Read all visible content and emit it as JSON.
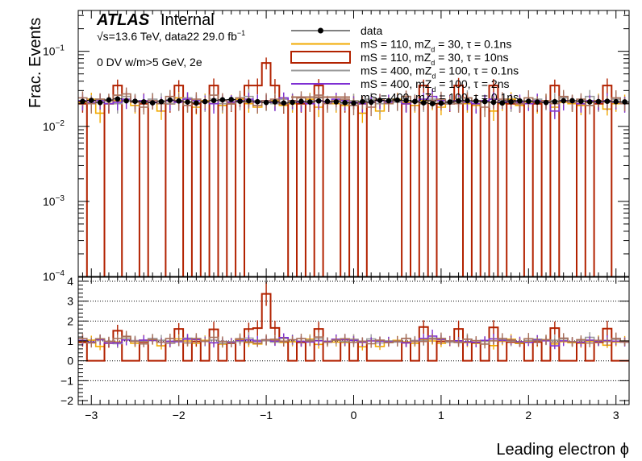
{
  "chart_data": {
    "type": "histogram",
    "x_edges_start": -3.15,
    "x_bin_width": 0.1,
    "n_bins": 63,
    "xlim": [
      -3.15,
      3.15
    ],
    "xlabel": "Leading electron ϕ",
    "x_ticks": [
      -3,
      -2,
      -1,
      0,
      1,
      2,
      3
    ],
    "upper": {
      "ylabel": "Frac. Events",
      "yscale": "log",
      "ylim": [
        0.0001,
        0.35
      ],
      "y_ticks": [
        {
          "value": 0.1,
          "base": "10",
          "exp": "−1"
        },
        {
          "value": 0.01,
          "base": "10",
          "exp": "−2"
        },
        {
          "value": 0.001,
          "base": "10",
          "exp": "−3"
        },
        {
          "value": 0.0001,
          "base": "10",
          "exp": "−4"
        }
      ]
    },
    "ratio": {
      "ylim": [
        -2.2,
        4.2
      ],
      "y_ticks": [
        -2,
        -1,
        0,
        1,
        2,
        3,
        4
      ],
      "grid_lines": [
        -1,
        0,
        1,
        2,
        3,
        4
      ]
    },
    "annotations": {
      "experiment": "ATLAS",
      "status": "Internal",
      "energy_prefix": "√s=13.6 TeV, data22 29.0 fb",
      "energy_sup": "−1",
      "selection": "0 DV w/m>5 GeV, 2e"
    },
    "legend": {
      "placement": "top-right",
      "entries": [
        {
          "label": "data",
          "color": "#000000",
          "style": "marker"
        },
        {
          "label": "mS = 110, mZ_d = 30, τ = 0.1ns",
          "color": "#f2a900",
          "style": "line"
        },
        {
          "label": "mS = 110, mZ_d = 30, τ = 10ns",
          "color": "#b22200",
          "style": "box"
        },
        {
          "label": "mS = 400, mZ_d = 100, τ = 0.1ns",
          "color": "#9a9a9a",
          "style": "line"
        },
        {
          "label": "mS = 400, mZ_d = 100, τ = 2ns",
          "color": "#7e2fd3",
          "style": "line"
        },
        {
          "label": "mS = 400, mZ_d = 100, τ = 0.1ns",
          "color": "#a8705a",
          "style": "line"
        }
      ]
    },
    "series": [
      {
        "name": "data",
        "color": "#000000",
        "values": [
          0.0215,
          0.0222,
          0.0208,
          0.0225,
          0.0232,
          0.0219,
          0.0216,
          0.0212,
          0.0206,
          0.0213,
          0.0224,
          0.0218,
          0.0211,
          0.0205,
          0.0214,
          0.0221,
          0.0226,
          0.0228,
          0.0216,
          0.0219,
          0.0213,
          0.0208,
          0.0212,
          0.0205,
          0.0209,
          0.0215,
          0.0211,
          0.0218,
          0.0215,
          0.0212,
          0.0207,
          0.0204,
          0.0213,
          0.021,
          0.0222,
          0.0219,
          0.0224,
          0.0221,
          0.0215,
          0.0206,
          0.0201,
          0.0204,
          0.0211,
          0.0218,
          0.022,
          0.0217,
          0.0214,
          0.0209,
          0.0205,
          0.0212,
          0.0218,
          0.0216,
          0.0211,
          0.0208,
          0.0213,
          0.0219,
          0.022,
          0.0216,
          0.0212,
          0.0214,
          0.0216,
          0.0213,
          0.0212
        ]
      },
      {
        "name": "mS = 110, mZ_d = 30, τ = 0.1ns",
        "color": "#f2a900",
        "values": [
          0.021,
          0.023,
          0.015,
          0.02,
          0.022,
          0.025,
          0.019,
          0.022,
          0.021,
          0.016,
          0.02,
          0.024,
          0.021,
          0.018,
          0.022,
          0.02,
          0.019,
          0.021,
          0.023,
          0.02,
          0.018,
          0.021,
          0.022,
          0.019,
          0.02,
          0.021,
          0.023,
          0.018,
          0.021,
          0.02,
          0.019,
          0.022,
          0.015,
          0.021,
          0.016,
          0.02,
          0.023,
          0.021,
          0.019,
          0.022,
          0.02,
          0.018,
          0.021,
          0.022,
          0.02,
          0.019,
          0.021,
          0.016,
          0.02,
          0.023,
          0.019,
          0.021,
          0.02,
          0.022,
          0.018,
          0.021,
          0.02,
          0.019,
          0.021,
          0.022,
          0.017,
          0.02,
          0.021
        ]
      },
      {
        "name": "mS = 110, mZ_d = 30, τ = 10ns",
        "color": "#b22200",
        "values": [
          0.02,
          5e-05,
          5e-05,
          0.02,
          0.035,
          5e-05,
          5e-05,
          0.02,
          5e-05,
          5e-05,
          0.02,
          0.035,
          5e-05,
          0.02,
          5e-05,
          0.035,
          5e-05,
          0.02,
          5e-05,
          0.035,
          0.035,
          0.07,
          0.035,
          0.02,
          5e-05,
          0.02,
          5e-05,
          0.035,
          5e-05,
          5e-05,
          0.02,
          5e-05,
          0.02,
          5e-05,
          5e-05,
          5e-05,
          5e-05,
          0.02,
          5e-05,
          0.035,
          5e-05,
          0.02,
          0.02,
          0.035,
          5e-05,
          0.02,
          5e-05,
          0.035,
          5e-05,
          0.02,
          0.02,
          5e-05,
          0.02,
          5e-05,
          0.035,
          5e-05,
          5e-05,
          0.02,
          5e-05,
          0.02,
          0.035,
          5e-05,
          5e-05
        ]
      },
      {
        "name": "mS = 400, mZ_d = 100, τ = 0.1ns",
        "color": "#9a9a9a",
        "values": [
          0.022,
          0.021,
          0.023,
          0.022,
          0.02,
          0.025,
          0.022,
          0.021,
          0.023,
          0.022,
          0.02,
          0.021,
          0.024,
          0.022,
          0.021,
          0.023,
          0.02,
          0.022,
          0.021,
          0.025,
          0.022,
          0.021,
          0.02,
          0.023,
          0.022,
          0.021,
          0.022,
          0.024,
          0.021,
          0.022,
          0.02,
          0.022,
          0.021,
          0.023,
          0.02,
          0.022,
          0.021,
          0.025,
          0.022,
          0.021,
          0.023,
          0.022,
          0.02,
          0.021,
          0.024,
          0.022,
          0.021,
          0.023,
          0.022,
          0.021,
          0.02,
          0.022,
          0.023,
          0.021,
          0.022,
          0.024,
          0.021,
          0.022,
          0.025,
          0.021,
          0.022,
          0.023,
          0.021
        ]
      },
      {
        "name": "mS = 400, mZ_d = 100, τ = 2ns",
        "color": "#7e2fd3",
        "values": [
          0.022,
          0.021,
          0.022,
          0.02,
          0.021,
          0.023,
          0.021,
          0.022,
          0.021,
          0.02,
          0.022,
          0.021,
          0.023,
          0.022,
          0.021,
          0.02,
          0.022,
          0.021,
          0.022,
          0.023,
          0.021,
          0.022,
          0.021,
          0.024,
          0.022,
          0.021,
          0.02,
          0.022,
          0.021,
          0.023,
          0.022,
          0.021,
          0.02,
          0.021,
          0.022,
          0.021,
          0.022,
          0.02,
          0.021,
          0.023,
          0.025,
          0.022,
          0.021,
          0.022,
          0.021,
          0.02,
          0.022,
          0.023,
          0.021,
          0.022,
          0.021,
          0.02,
          0.022,
          0.021,
          0.016,
          0.022,
          0.021,
          0.02,
          0.022,
          0.021,
          0.022,
          0.021,
          0.02
        ]
      },
      {
        "name": "mS = 400, mZ_d = 100, τ = 0.1ns",
        "color": "#a8705a",
        "values": [
          0.024,
          0.02,
          0.023,
          0.022,
          0.026,
          0.027,
          0.021,
          0.018,
          0.022,
          0.02,
          0.025,
          0.022,
          0.019,
          0.023,
          0.021,
          0.026,
          0.022,
          0.02,
          0.024,
          0.021,
          0.019,
          0.022,
          0.023,
          0.02,
          0.022,
          0.024,
          0.021,
          0.026,
          0.02,
          0.022,
          0.023,
          0.019,
          0.021,
          0.018,
          0.023,
          0.02,
          0.022,
          0.025,
          0.021,
          0.02,
          0.022,
          0.023,
          0.021,
          0.02,
          0.024,
          0.022,
          0.018,
          0.021,
          0.023,
          0.022,
          0.02,
          0.024,
          0.021,
          0.022,
          0.02,
          0.025,
          0.021,
          0.023,
          0.019,
          0.022,
          0.021,
          0.024,
          0.02
        ]
      }
    ]
  }
}
